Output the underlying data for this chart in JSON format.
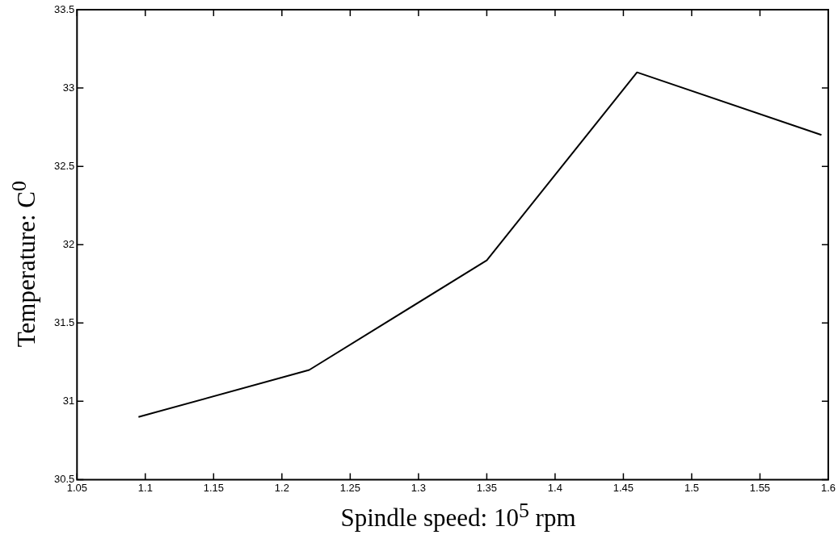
{
  "chart_data": {
    "type": "line",
    "xlabel": "Spindle speed: 10$^{5}$ rpm",
    "ylabel": "Temperature: C$^{0}$",
    "x": [
      1.095,
      1.22,
      1.35,
      1.46,
      1.595
    ],
    "series": [
      {
        "color": "#000000",
        "values": [
          30.9,
          31.2,
          31.9,
          33.1,
          32.7
        ]
      }
    ],
    "xlim": [
      1.05,
      1.6
    ],
    "xticks": [
      1.05,
      1.1,
      1.15,
      1.2,
      1.25,
      1.3,
      1.35,
      1.4,
      1.45,
      1.5,
      1.55,
      1.6
    ],
    "ylim": [
      30.5,
      33.5
    ],
    "yticks": [
      30.5,
      31,
      31.5,
      32,
      32.5,
      33,
      33.5
    ],
    "grid": false,
    "legend": false,
    "marker": "none",
    "line_style": "solid"
  }
}
